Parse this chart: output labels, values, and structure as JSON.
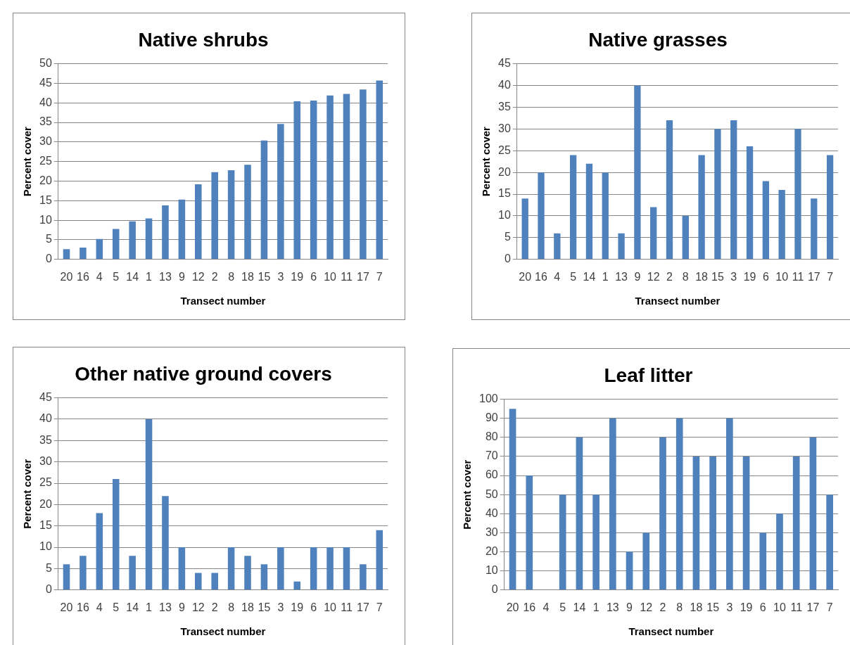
{
  "chart_data": [
    {
      "type": "bar",
      "title": "Native shrubs",
      "xlabel": "Transect number",
      "ylabel": "Percent cover",
      "categories": [
        "20",
        "16",
        "4",
        "5",
        "14",
        "1",
        "13",
        "9",
        "12",
        "2",
        "8",
        "18",
        "15",
        "3",
        "19",
        "6",
        "10",
        "11",
        "17",
        "7"
      ],
      "color": "#4f81bd",
      "values": [
        2.6,
        3.0,
        5.2,
        7.8,
        9.7,
        10.5,
        13.8,
        15.3,
        19.2,
        22.3,
        22.8,
        24.2,
        30.4,
        34.6,
        40.4,
        40.6,
        41.9,
        42.3,
        43.4,
        45.7
      ],
      "ylim": [
        0,
        50
      ],
      "yticks": [
        0,
        5,
        10,
        15,
        20,
        25,
        30,
        35,
        40,
        45,
        50
      ],
      "grid": "y",
      "legend": false
    },
    {
      "type": "bar",
      "title": "Native grasses",
      "xlabel": "Transect number",
      "ylabel": "Percent cover",
      "categories": [
        "20",
        "16",
        "4",
        "5",
        "14",
        "1",
        "13",
        "9",
        "12",
        "2",
        "8",
        "18",
        "15",
        "3",
        "19",
        "6",
        "10",
        "11",
        "17",
        "7"
      ],
      "color": "#4f81bd",
      "values": [
        14,
        20,
        6,
        24,
        22,
        20,
        6,
        40,
        12,
        32,
        10,
        24,
        30,
        32,
        26,
        18,
        16,
        30,
        14,
        24
      ],
      "ylim": [
        0,
        45
      ],
      "yticks": [
        0,
        5,
        10,
        15,
        20,
        25,
        30,
        35,
        40,
        45
      ],
      "grid": "y",
      "legend": false
    },
    {
      "type": "bar",
      "title": "Other native ground covers",
      "xlabel": "Transect number",
      "ylabel": "Percent cover",
      "categories": [
        "20",
        "16",
        "4",
        "5",
        "14",
        "1",
        "13",
        "9",
        "12",
        "2",
        "8",
        "18",
        "15",
        "3",
        "19",
        "6",
        "10",
        "11",
        "17",
        "7"
      ],
      "color": "#4f81bd",
      "values": [
        6,
        8,
        18,
        26,
        8,
        40,
        22,
        10,
        4,
        4,
        10,
        8,
        6,
        10,
        2,
        10,
        10,
        10,
        6,
        14
      ],
      "ylim": [
        0,
        45
      ],
      "yticks": [
        0,
        5,
        10,
        15,
        20,
        25,
        30,
        35,
        40,
        45
      ],
      "grid": "y",
      "legend": false
    },
    {
      "type": "bar",
      "title": "Leaf litter",
      "xlabel": "Transect number",
      "ylabel": "Percent cover",
      "categories": [
        "20",
        "16",
        "4",
        "5",
        "14",
        "1",
        "13",
        "9",
        "12",
        "2",
        "8",
        "18",
        "15",
        "3",
        "19",
        "6",
        "10",
        "11",
        "17",
        "7"
      ],
      "color": "#4f81bd",
      "values": [
        95,
        60,
        0,
        50,
        80,
        50,
        90,
        20,
        30,
        80,
        90,
        70,
        70,
        90,
        70,
        30,
        40,
        70,
        80,
        50
      ],
      "ylim": [
        0,
        100
      ],
      "yticks": [
        0,
        10,
        20,
        30,
        40,
        50,
        60,
        70,
        80,
        90,
        100
      ],
      "grid": "y",
      "legend": false
    }
  ]
}
